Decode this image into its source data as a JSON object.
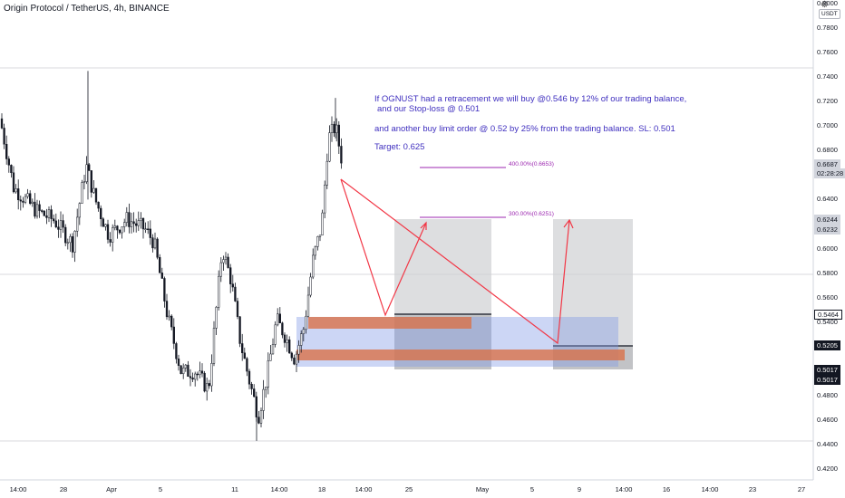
{
  "header": {
    "title": "Origin Protocol / TetherUS, 4h, BINANCE",
    "quote_currency": "USDT",
    "settings_icon": "gear-icon"
  },
  "annotation": {
    "line1": "If OGNUST had a retracement we will buy @0.546 by 12% of our trading balance,",
    "line2": "and our Stop-loss @ 0.501",
    "line3": "and another buy limit order @ 0.52 by 25% from the trading balance. SL: 0.501",
    "line4": "Target: 0.625"
  },
  "fib_levels": [
    {
      "label": "400.00%(0.6653)",
      "price": 0.6653
    },
    {
      "label": "300.00%(0.6251)",
      "price": 0.6251
    }
  ],
  "price_axis": {
    "ticks": [
      "0.8000",
      "0.7800",
      "0.7600",
      "0.7400",
      "0.7200",
      "0.7000",
      "0.6800",
      "0.6600",
      "0.6400",
      "0.6200",
      "0.6000",
      "0.5800",
      "0.5600",
      "0.5400",
      "0.5200",
      "0.5000",
      "0.4800",
      "0.4600",
      "0.4400",
      "0.4200"
    ],
    "current_price": "0.6687",
    "countdown": "02:28:28",
    "labels": [
      {
        "text": "0.6244",
        "style": "gray"
      },
      {
        "text": "0.6232",
        "style": "gray"
      },
      {
        "text": "0.5464",
        "style": "white"
      },
      {
        "text": "0.5205",
        "style": "black"
      },
      {
        "text": "0.5017",
        "style": "black"
      },
      {
        "text": "0.5017",
        "style": "black"
      }
    ]
  },
  "time_axis": {
    "ticks": [
      "14:00",
      "28",
      "Apr",
      "5",
      "11",
      "14:00",
      "18",
      "14:00",
      "25",
      "May",
      "5",
      "9",
      "14:00",
      "16",
      "14:00",
      "23",
      "27"
    ]
  },
  "colors": {
    "up": "#ffffff",
    "down": "#131722",
    "arrow": "#f23645",
    "fib": "#9c27b0",
    "zone_blue": "#7f98e6",
    "zone_orange": "#d9724a",
    "projection": "#b2b5be"
  },
  "chart_data": {
    "type": "candlestick",
    "symbol": "OGNUSDT",
    "timeframe": "4h",
    "ylim": [
      0.41,
      0.81
    ],
    "planned_entries": [
      0.546,
      0.52
    ],
    "stop_loss": 0.501,
    "target": 0.625
  }
}
